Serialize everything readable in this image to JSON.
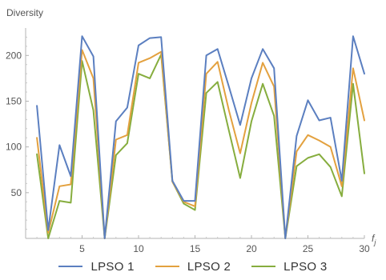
{
  "chart_data": {
    "type": "line",
    "ylabel": "Diversity",
    "xlabel": "f",
    "xlabel_subscript": "j",
    "xlim": [
      0,
      30
    ],
    "ylim": [
      0,
      230
    ],
    "xticks": [
      5,
      10,
      15,
      20,
      25,
      30
    ],
    "yticks": [
      50,
      100,
      150,
      200
    ],
    "grid": false,
    "legend_position": "bottom",
    "x": [
      1,
      2,
      3,
      4,
      5,
      6,
      7,
      8,
      9,
      10,
      11,
      12,
      13,
      14,
      15,
      16,
      17,
      18,
      19,
      20,
      21,
      22,
      23,
      24,
      25,
      26,
      27,
      28,
      29,
      30
    ],
    "series": [
      {
        "name": "LPSO 1",
        "color": "#5b7fc0",
        "values": [
          145,
          9,
          102,
          68,
          221,
          199,
          0,
          128,
          143,
          211,
          219,
          220,
          63,
          41,
          41,
          200,
          207,
          166,
          124,
          175,
          207,
          186,
          0,
          112,
          151,
          129,
          132,
          63,
          221,
          180
        ]
      },
      {
        "name": "LPSO 2",
        "color": "#e3a13f",
        "values": [
          110,
          6,
          57,
          59,
          206,
          175,
          0,
          108,
          113,
          192,
          197,
          204,
          62,
          40,
          35,
          180,
          193,
          140,
          93,
          148,
          192,
          166,
          0,
          95,
          113,
          107,
          100,
          57,
          186,
          129
        ]
      },
      {
        "name": "LPSO 3",
        "color": "#86ad3e",
        "values": [
          92,
          0,
          41,
          39,
          194,
          140,
          0,
          91,
          104,
          180,
          175,
          201,
          62,
          38,
          31,
          159,
          171,
          118,
          66,
          128,
          169,
          134,
          0,
          79,
          88,
          92,
          78,
          46,
          169,
          71
        ]
      }
    ]
  }
}
